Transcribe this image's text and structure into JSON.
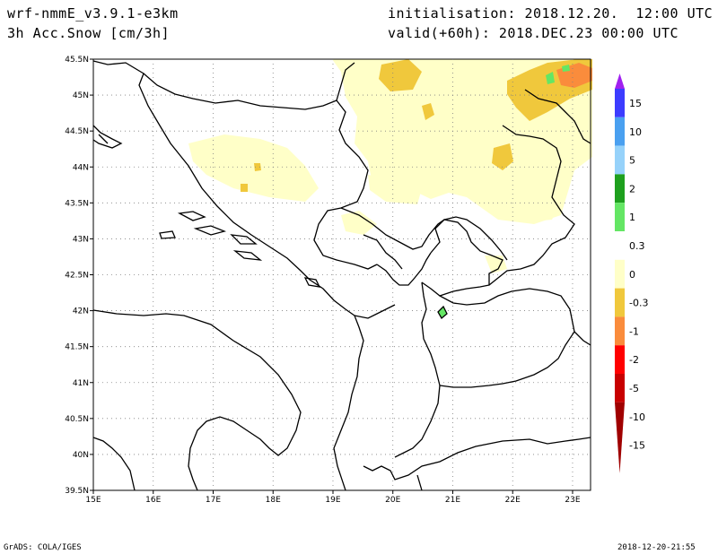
{
  "header": {
    "model": "wrf-nmmE_v3.9.1-e3km",
    "field": "3h Acc.Snow [cm/3h]",
    "init": "initialisation: 2018.12.20.  12:00 UTC",
    "valid": "valid(+60h): 2018.DEC.23 00:00 UTC"
  },
  "footer": {
    "credit": "GrADS: COLA/IGES",
    "timestamp": "2018-12-20-21:55"
  },
  "map": {
    "lon_labels": [
      "15E",
      "16E",
      "17E",
      "18E",
      "19E",
      "20E",
      "21E",
      "22E",
      "23E"
    ],
    "lat_labels": [
      "45.5N",
      "45N",
      "44.5N",
      "44N",
      "43.5N",
      "43N",
      "42.5N",
      "42N",
      "41.5N",
      "41N",
      "40.5N",
      "40N",
      "39.5N"
    ],
    "lon_range": [
      15,
      23.3
    ],
    "lat_range": [
      39.5,
      45.5
    ]
  },
  "legend": {
    "labels": [
      "15",
      "10",
      "5",
      "2",
      "1",
      "0.3",
      "0",
      "-0.3",
      "-1",
      "-2",
      "-5",
      "-10",
      "-15"
    ],
    "colors": [
      "#a020f0",
      "#3c3cff",
      "#4aa0f0",
      "#96d2fa",
      "#1ea01e",
      "#64e664",
      "#ffffff",
      "#ffffc8",
      "#f0c83c",
      "#fa8c3c",
      "#ff0000",
      "#c80000",
      "#a00000"
    ]
  }
}
